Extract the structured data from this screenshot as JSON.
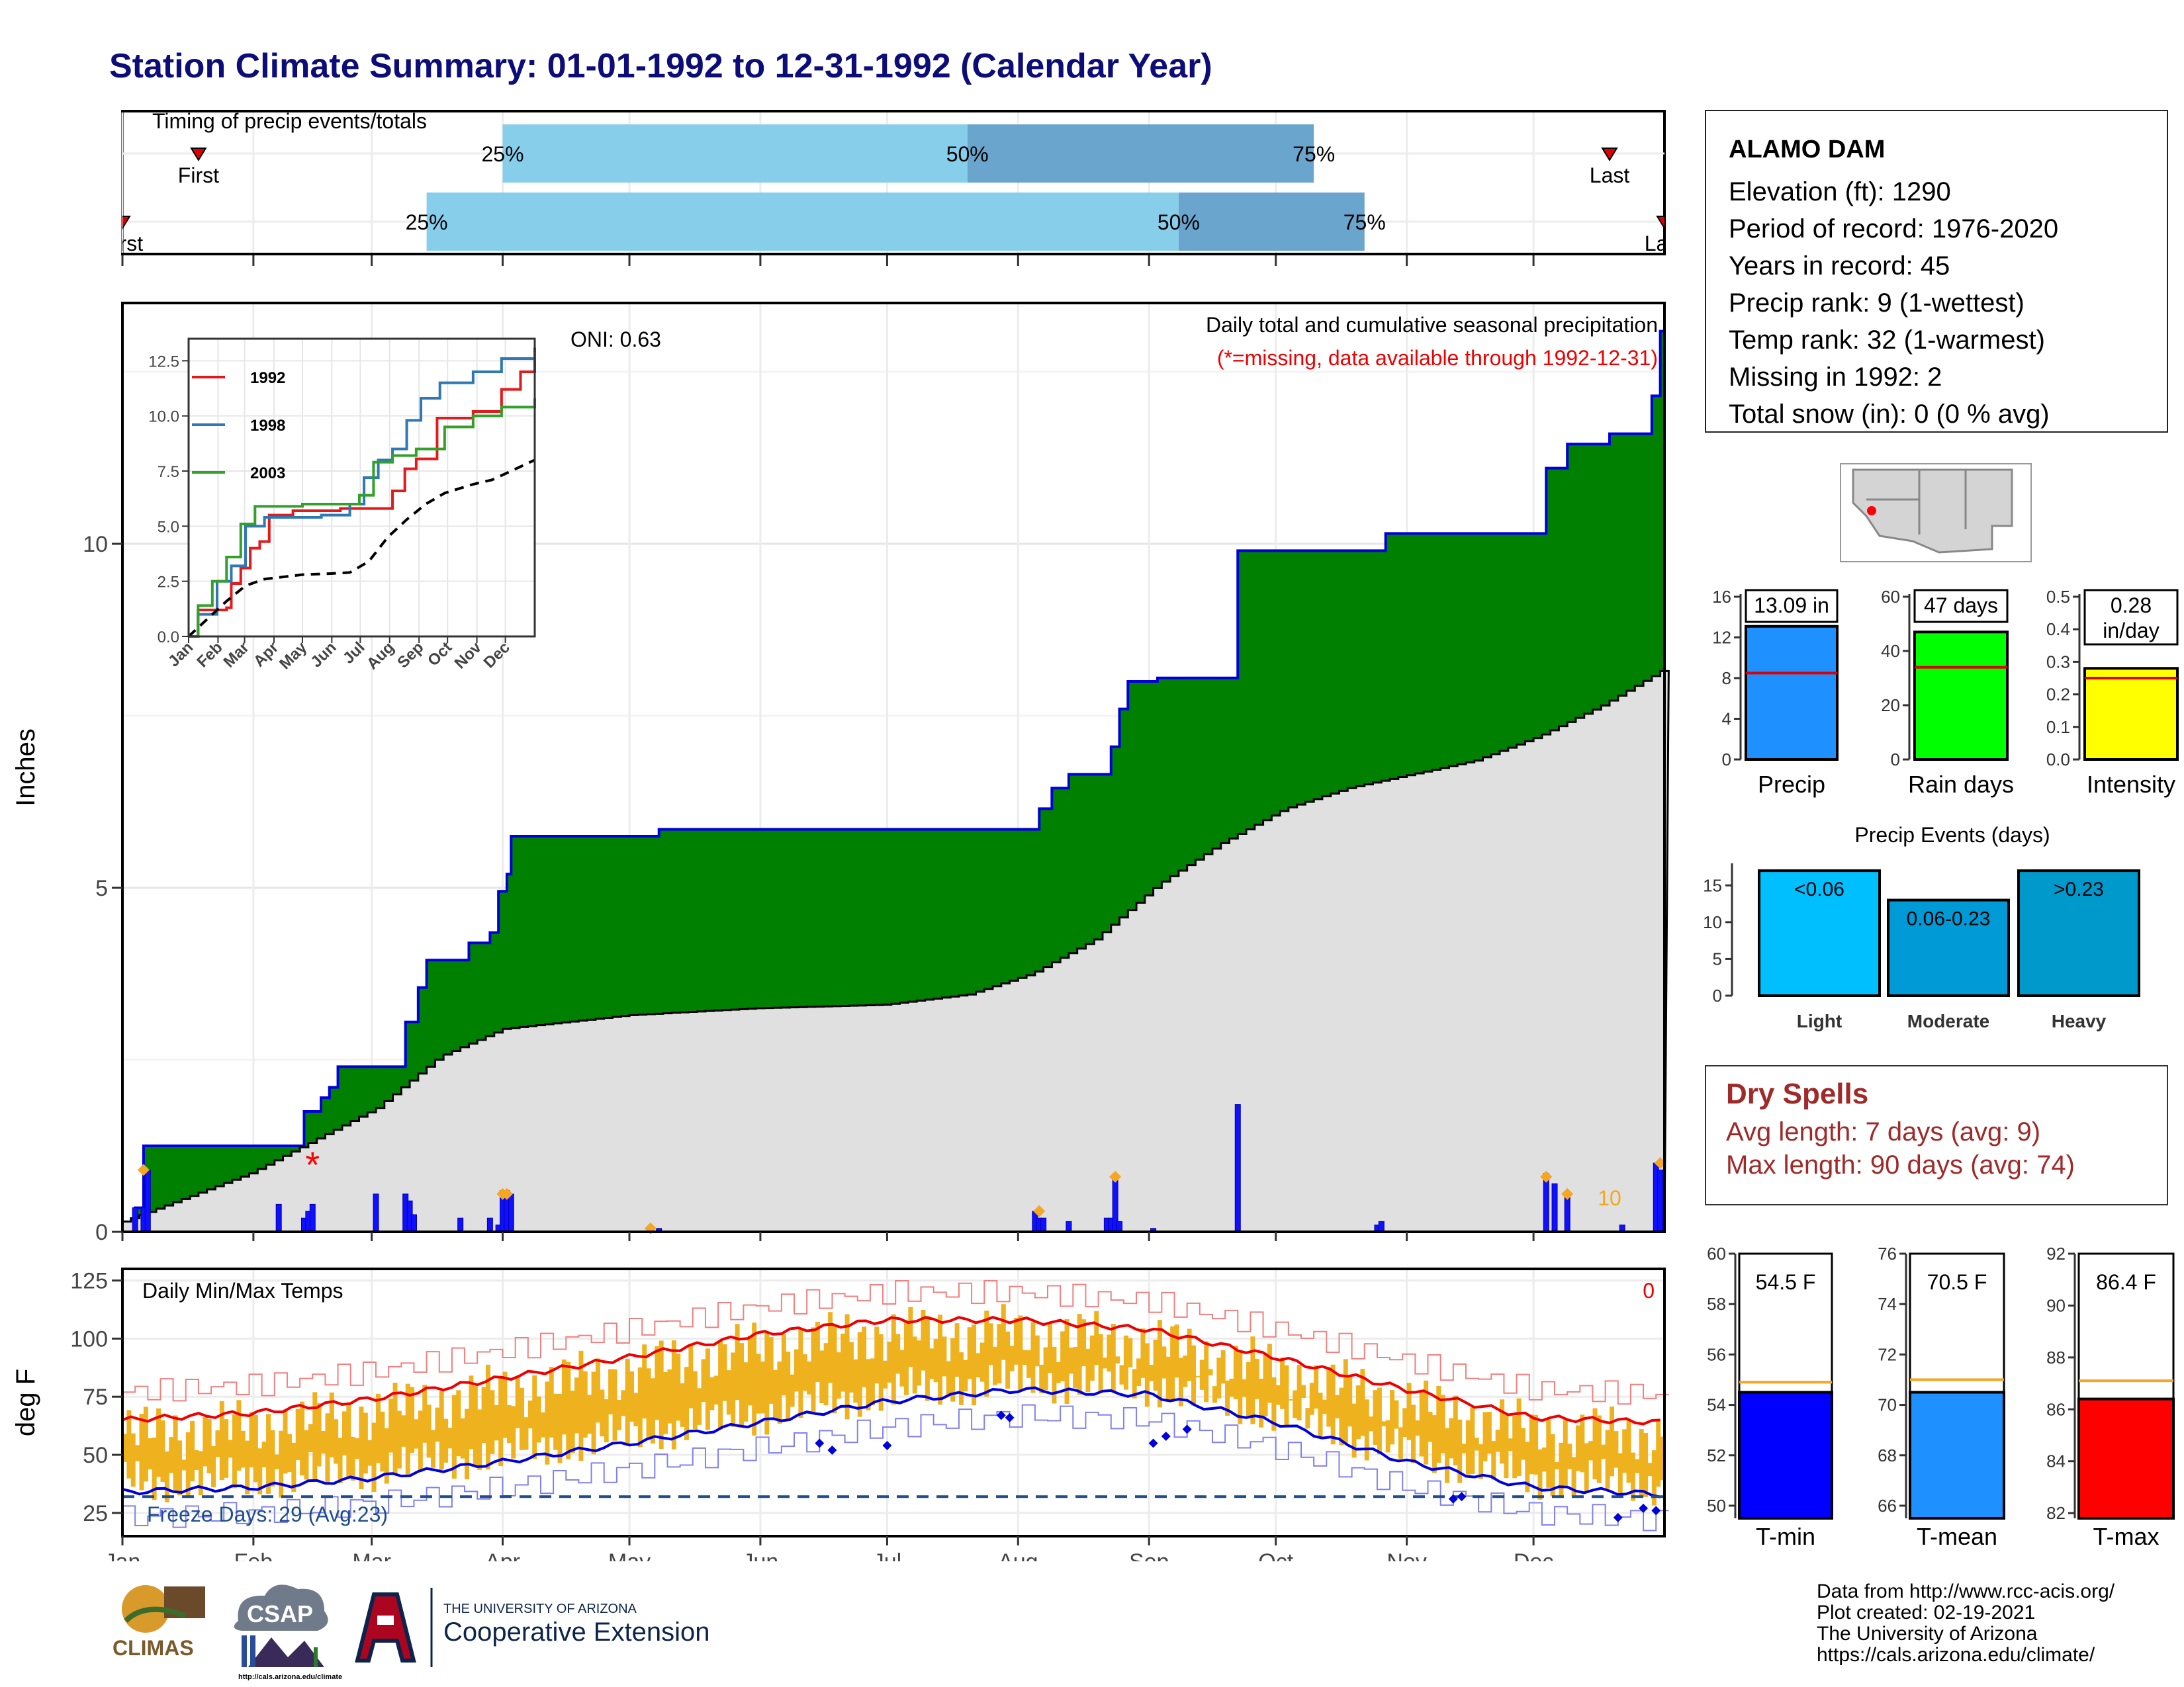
{
  "title": "Station Climate Summary: 01-01-1992 to 12-31-1992 (Calendar Year)",
  "station": {
    "name": "ALAMO DAM",
    "lines": [
      "Elevation (ft): 1290",
      "Period of record: 1976-2020",
      "Years in record: 45",
      "Precip rank: 9 (1-wettest)",
      "Temp rank: 32 (1-warmest)",
      "Missing in 1992: 2",
      "Total snow (in): 0 (0 % avg)"
    ]
  },
  "timing": {
    "label": "Timing of precip events/totals",
    "rows": [
      {
        "name": "Avg",
        "first_doy": 18,
        "q25": 90,
        "q50": 200,
        "q75": 282,
        "last_doy": 352,
        "first_label": "First",
        "last_label": "Last",
        "p25": "25%",
        "p50": "50%",
        "p75": "75%"
      },
      {
        "name": "1992",
        "first_doy": 0,
        "q25": 72,
        "q50": 250,
        "q75": 294,
        "last_doy": 365,
        "first_label": "First",
        "last_label": "Last",
        "p25": "25%",
        "p50": "50%",
        "p75": "75%"
      }
    ]
  },
  "month_labels": [
    "Jan",
    "Feb",
    "Mar",
    "Apr",
    "May",
    "Jun",
    "Jul",
    "Aug",
    "Sep",
    "Oct",
    "Nov",
    "Dec"
  ],
  "precip_panel": {
    "ylabel": "Inches",
    "oni": "ONI: 0.63",
    "caption": "Daily total and cumulative seasonal precipitation",
    "missing_note": "(*=missing, data available through 1992-12-31)",
    "corner_count": "10",
    "y_ticks": [
      "0",
      "5",
      "10"
    ],
    "colors": {
      "cumulative": "#008000",
      "normal": "#e0e0e0",
      "daily": "#1010ff",
      "marker": "#f5a623",
      "missing": "#ff0000"
    }
  },
  "inset": {
    "series": [
      {
        "name": "1992",
        "color": "#e31a1c"
      },
      {
        "name": "1998",
        "color": "#2f78b4"
      },
      {
        "name": "2003",
        "color": "#33a02c"
      }
    ],
    "y_ticks": [
      "0.0",
      "2.5",
      "5.0",
      "7.5",
      "10.0",
      "12.5"
    ],
    "x_ticks": [
      "Jan",
      "Feb",
      "Mar",
      "Apr",
      "May",
      "Jun",
      "Jul",
      "Aug",
      "Sep",
      "Oct",
      "Nov",
      "Dec"
    ]
  },
  "temp_panel": {
    "ylabel": "deg F",
    "label": "Daily Min/Max Temps",
    "freeze": "Freeze Days: 29 (Avg:23)",
    "missing_count": "0",
    "y_ticks": [
      "25",
      "50",
      "75",
      "100",
      "125"
    ]
  },
  "summary_bars": [
    {
      "name": "Precip",
      "value_label": "13.09 in",
      "value": 13.09,
      "avg": 8.5,
      "ymax": 16,
      "ticks": [
        "0",
        "4",
        "8",
        "12",
        "16"
      ],
      "color": "#1e90ff"
    },
    {
      "name": "Rain days",
      "value_label": "47 days",
      "value": 47,
      "avg": 34,
      "ymax": 60,
      "ticks": [
        "0",
        "20",
        "40",
        "60"
      ],
      "color": "#00ff00"
    },
    {
      "name": "Intensity",
      "value_label": "0.28",
      "value_label2": "in/day",
      "value": 0.28,
      "avg": 0.25,
      "ymax": 0.5,
      "ticks": [
        "0.0",
        "0.1",
        "0.2",
        "0.3",
        "0.4",
        "0.5"
      ],
      "color": "#ffff00"
    }
  ],
  "precip_events": {
    "title": "Precip Events (days)",
    "ticks": [
      "0",
      "5",
      "10",
      "15"
    ],
    "bars": [
      {
        "name": "Light",
        "label": "<0.06",
        "value": 17,
        "color": "#00bfff"
      },
      {
        "name": "Moderate",
        "label": "0.06-0.23",
        "value": 13,
        "color": "#009ad6"
      },
      {
        "name": "Heavy",
        "label": ">0.23",
        "value": 17,
        "color": "#0099cc"
      }
    ]
  },
  "dry_spells": {
    "title": "Dry Spells",
    "avg": "Avg length: 7 days (avg: 9)",
    "max": "Max length: 90 days (avg: 74)"
  },
  "temp_bars": [
    {
      "name": "T-min",
      "value_label": "54.5 F",
      "value": 54.5,
      "avg": 54.9,
      "ymin": 49.5,
      "ymax": 60,
      "ticks": [
        "50",
        "52",
        "54",
        "56",
        "58",
        "60"
      ],
      "color": "#0000ff"
    },
    {
      "name": "T-mean",
      "value_label": "70.5 F",
      "value": 70.5,
      "avg": 71.0,
      "ymin": 65.5,
      "ymax": 76,
      "ticks": [
        "66",
        "68",
        "70",
        "72",
        "74",
        "76"
      ],
      "color": "#1e90ff"
    },
    {
      "name": "T-max",
      "value_label": "86.4 F",
      "value": 86.4,
      "avg": 87.1,
      "ymin": 81.8,
      "ymax": 92,
      "ticks": [
        "82",
        "84",
        "86",
        "88",
        "90",
        "92"
      ],
      "color": "#ff0000"
    }
  ],
  "credits": [
    "Data from http://www.rcc-acis.org/",
    "Plot created: 02-19-2021",
    "The University of Arizona",
    "https://cals.arizona.edu/climate/"
  ],
  "logos": {
    "climas": "CLIMAS",
    "csap": "CSAP",
    "csap_url": "http://cals.arizona.edu/climate",
    "ua_line1": "THE UNIVERSITY OF ARIZONA",
    "ua_line2": "Cooperative Extension"
  },
  "chart_data": [
    {
      "type": "bar",
      "title": "Timing of precip events/totals",
      "categories": [
        "Avg",
        "1992"
      ],
      "series": [
        {
          "name": "25%",
          "values": [
            90,
            72
          ]
        },
        {
          "name": "50%",
          "values": [
            200,
            250
          ]
        },
        {
          "name": "75%",
          "values": [
            282,
            294
          ]
        }
      ]
    },
    {
      "type": "area",
      "title": "Daily total and cumulative seasonal precipitation",
      "ylabel": "Inches",
      "xlim": [
        0,
        365
      ],
      "ylim": [
        0,
        13.5
      ],
      "cumulative_steps": [
        [
          0,
          0
        ],
        [
          3,
          0.35
        ],
        [
          5,
          1.25
        ],
        [
          40,
          1.25
        ],
        [
          43,
          1.75
        ],
        [
          47,
          1.95
        ],
        [
          49,
          2.1
        ],
        [
          51,
          2.4
        ],
        [
          66,
          2.4
        ],
        [
          67,
          3.05
        ],
        [
          70,
          3.55
        ],
        [
          72,
          3.95
        ],
        [
          80,
          3.95
        ],
        [
          82,
          4.2
        ],
        [
          86,
          4.2
        ],
        [
          87,
          4.35
        ],
        [
          89,
          4.95
        ],
        [
          91,
          5.2
        ],
        [
          92,
          5.75
        ],
        [
          126,
          5.75
        ],
        [
          127,
          5.85
        ],
        [
          216,
          5.85
        ],
        [
          217,
          6.15
        ],
        [
          220,
          6.45
        ],
        [
          224,
          6.65
        ],
        [
          232,
          6.65
        ],
        [
          234,
          7.05
        ],
        [
          236,
          7.6
        ],
        [
          238,
          8.0
        ],
        [
          245,
          8.05
        ],
        [
          263,
          8.05
        ],
        [
          264,
          9.9
        ],
        [
          298,
          9.9
        ],
        [
          299,
          10.15
        ],
        [
          334,
          10.15
        ],
        [
          337,
          11.1
        ],
        [
          342,
          11.45
        ],
        [
          352,
          11.6
        ],
        [
          361,
          11.6
        ],
        [
          362,
          12.15
        ],
        [
          364,
          13.09
        ]
      ],
      "normal_points": [
        [
          0,
          0.15
        ],
        [
          30,
          0.85
        ],
        [
          60,
          1.8
        ],
        [
          75,
          2.55
        ],
        [
          90,
          2.95
        ],
        [
          120,
          3.15
        ],
        [
          150,
          3.25
        ],
        [
          180,
          3.3
        ],
        [
          200,
          3.45
        ],
        [
          215,
          3.75
        ],
        [
          230,
          4.25
        ],
        [
          245,
          5.05
        ],
        [
          260,
          5.65
        ],
        [
          275,
          6.15
        ],
        [
          290,
          6.45
        ],
        [
          305,
          6.65
        ],
        [
          320,
          6.85
        ],
        [
          335,
          7.2
        ],
        [
          350,
          7.65
        ],
        [
          364,
          8.15
        ]
      ],
      "daily_bars": [
        [
          3,
          0.35
        ],
        [
          5,
          0.35
        ],
        [
          6,
          0.9
        ],
        [
          37,
          0.4
        ],
        [
          43,
          0.2
        ],
        [
          44,
          0.3
        ],
        [
          45,
          0.4
        ],
        [
          60,
          0.55
        ],
        [
          67,
          0.55
        ],
        [
          68,
          0.45
        ],
        [
          69,
          0.25
        ],
        [
          80,
          0.2
        ],
        [
          87,
          0.2
        ],
        [
          89,
          0.1
        ],
        [
          90,
          0.6
        ],
        [
          91,
          0.6
        ],
        [
          92,
          0.55
        ],
        [
          127,
          0.05
        ],
        [
          216,
          0.3
        ],
        [
          217,
          0.2
        ],
        [
          218,
          0.2
        ],
        [
          224,
          0.15
        ],
        [
          233,
          0.2
        ],
        [
          234,
          0.2
        ],
        [
          235,
          0.8
        ],
        [
          236,
          0.15
        ],
        [
          244,
          0.05
        ],
        [
          264,
          1.85
        ],
        [
          297,
          0.1
        ],
        [
          298,
          0.15
        ],
        [
          337,
          0.85
        ],
        [
          339,
          0.7
        ],
        [
          342,
          0.55
        ],
        [
          355,
          0.1
        ],
        [
          363,
          1.0
        ],
        [
          364,
          0.9
        ]
      ]
    },
    {
      "type": "line",
      "title": "",
      "x_ticks": [
        "Jan",
        "Feb",
        "Mar",
        "Apr",
        "May",
        "Jun",
        "Jul",
        "Aug",
        "Sep",
        "Oct",
        "Nov",
        "Dec"
      ],
      "ylim": [
        0,
        13.5
      ],
      "series": [
        {
          "name": "1992",
          "points": [
            [
              0,
              0
            ],
            [
              10,
              1.2
            ],
            [
              40,
              1.3
            ],
            [
              45,
              2.4
            ],
            [
              55,
              3.1
            ],
            [
              65,
              4.0
            ],
            [
              75,
              4.3
            ],
            [
              85,
              5.5
            ],
            [
              110,
              5.7
            ],
            [
              160,
              5.8
            ],
            [
              205,
              5.8
            ],
            [
              215,
              6.6
            ],
            [
              228,
              7.6
            ],
            [
              240,
              8.05
            ],
            [
              262,
              9.9
            ],
            [
              300,
              10.2
            ],
            [
              330,
              11.2
            ],
            [
              350,
              12.0
            ],
            [
              365,
              13.09
            ]
          ]
        },
        {
          "name": "1998",
          "points": [
            [
              0,
              0
            ],
            [
              10,
              1.0
            ],
            [
              30,
              2.5
            ],
            [
              45,
              3.2
            ],
            [
              60,
              5.0
            ],
            [
              80,
              5.4
            ],
            [
              140,
              5.5
            ],
            [
              170,
              6.0
            ],
            [
              185,
              7.2
            ],
            [
              200,
              8.0
            ],
            [
              215,
              8.5
            ],
            [
              230,
              9.8
            ],
            [
              245,
              10.8
            ],
            [
              265,
              11.5
            ],
            [
              300,
              12.0
            ],
            [
              330,
              12.6
            ],
            [
              365,
              12.9
            ]
          ]
        },
        {
          "name": "2003",
          "points": [
            [
              0,
              0
            ],
            [
              10,
              1.4
            ],
            [
              25,
              2.5
            ],
            [
              40,
              3.6
            ],
            [
              55,
              5.1
            ],
            [
              70,
              5.9
            ],
            [
              120,
              6.0
            ],
            [
              160,
              6.0
            ],
            [
              180,
              6.4
            ],
            [
              195,
              7.9
            ],
            [
              215,
              8.2
            ],
            [
              240,
              8.5
            ],
            [
              270,
              9.5
            ],
            [
              300,
              10.0
            ],
            [
              330,
              10.4
            ],
            [
              365,
              10.8
            ]
          ]
        },
        {
          "name": "",
          "points": [
            [
              0,
              0
            ],
            [
              20,
              0.8
            ],
            [
              40,
              1.6
            ],
            [
              60,
              2.3
            ],
            [
              80,
              2.6
            ],
            [
              120,
              2.8
            ],
            [
              150,
              2.85
            ],
            [
              170,
              2.9
            ],
            [
              190,
              3.4
            ],
            [
              210,
              4.5
            ],
            [
              230,
              5.3
            ],
            [
              250,
              6.0
            ],
            [
              270,
              6.5
            ],
            [
              300,
              6.9
            ],
            [
              320,
              7.1
            ],
            [
              340,
              7.5
            ],
            [
              365,
              8.0
            ]
          ]
        }
      ]
    },
    {
      "type": "bar",
      "title": "Daily Min/Max Temps",
      "ylabel": "deg F",
      "ylim": [
        15,
        130
      ],
      "monthly_normal_max": [
        [
          0,
          65
        ],
        [
          31,
          68
        ],
        [
          59,
          74
        ],
        [
          90,
          83
        ],
        [
          120,
          92
        ],
        [
          151,
          102
        ],
        [
          181,
          108
        ],
        [
          212,
          108
        ],
        [
          243,
          104
        ],
        [
          273,
          92
        ],
        [
          304,
          78
        ],
        [
          334,
          66
        ],
        [
          364,
          64
        ]
      ],
      "monthly_normal_min": [
        [
          0,
          34
        ],
        [
          31,
          36
        ],
        [
          59,
          40
        ],
        [
          90,
          47
        ],
        [
          120,
          55
        ],
        [
          151,
          64
        ],
        [
          181,
          73
        ],
        [
          212,
          78
        ],
        [
          243,
          76
        ],
        [
          273,
          64
        ],
        [
          304,
          47
        ],
        [
          334,
          36
        ],
        [
          364,
          33
        ]
      ],
      "freeze_line": 32
    },
    {
      "type": "bar",
      "title": "",
      "categories": [
        "Precip",
        "Rain days",
        "Intensity"
      ],
      "values": [
        13.09,
        47,
        0.28
      ]
    },
    {
      "type": "bar",
      "title": "Precip Events (days)",
      "categories": [
        "Light",
        "Moderate",
        "Heavy"
      ],
      "values": [
        17,
        13,
        17
      ]
    },
    {
      "type": "bar",
      "title": "",
      "categories": [
        "T-min",
        "T-mean",
        "T-max"
      ],
      "values": [
        54.5,
        70.5,
        86.4
      ]
    }
  ]
}
